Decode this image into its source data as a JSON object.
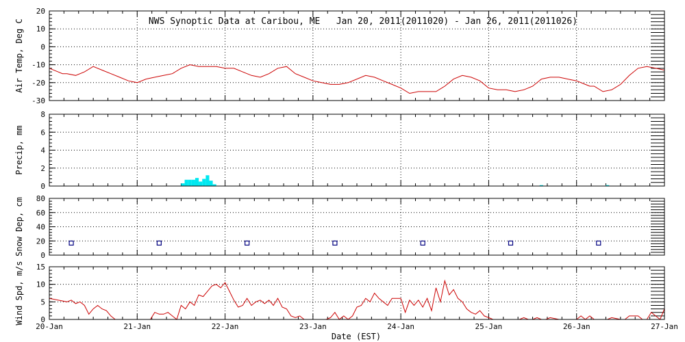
{
  "chart_data": {
    "type": "multi-panel",
    "title": "NWS Synoptic Data at Caribou, ME   Jan 20, 2011(2011020) - Jan 26, 2011(2011026)",
    "xlabel": "Date (EST)",
    "x_ticks": [
      "20-Jan",
      "21-Jan",
      "22-Jan",
      "23-Jan",
      "24-Jan",
      "25-Jan",
      "26-Jan",
      "27-Jan"
    ],
    "xlim": [
      0,
      7
    ],
    "grid": true,
    "panels": [
      {
        "type": "line",
        "ylabel": "Air Temp, Deg C",
        "ylim": [
          -30,
          20
        ],
        "yticks": [
          -30,
          -20,
          -10,
          0,
          10,
          20
        ],
        "color": "#cc0000",
        "series": [
          {
            "x": [
              0,
              0.1,
              0.15,
              0.2,
              0.3,
              0.4,
              0.5,
              0.6,
              0.7,
              0.8,
              0.9,
              1.0,
              1.1,
              1.2,
              1.3,
              1.4,
              1.5,
              1.6,
              1.7,
              1.8,
              1.9,
              2.0,
              2.1,
              2.2,
              2.3,
              2.4,
              2.5,
              2.6,
              2.7,
              2.8,
              2.9,
              3.0,
              3.1,
              3.2,
              3.3,
              3.4,
              3.5,
              3.6,
              3.7,
              3.8,
              3.9,
              4.0,
              4.1,
              4.2,
              4.3,
              4.4,
              4.5,
              4.6,
              4.7,
              4.8,
              4.9,
              5.0,
              5.1,
              5.2,
              5.3,
              5.4,
              5.5,
              5.6,
              5.7,
              5.8,
              5.9,
              6.0,
              6.1,
              6.15,
              6.2,
              6.3,
              6.4,
              6.5,
              6.6,
              6.7,
              6.8,
              6.9,
              7.0
            ],
            "y": [
              -12,
              -14,
              -15,
              -15,
              -16,
              -14,
              -11,
              -13,
              -15,
              -17,
              -19,
              -20,
              -18,
              -17,
              -16,
              -15,
              -12,
              -10,
              -11,
              -11,
              -11,
              -12,
              -12,
              -14,
              -16,
              -17,
              -15,
              -12,
              -11,
              -15,
              -17,
              -19,
              -20,
              -21,
              -21,
              -20,
              -18,
              -16,
              -17,
              -19,
              -21,
              -23,
              -26,
              -25,
              -25,
              -25,
              -22,
              -18,
              -16,
              -17,
              -19,
              -23,
              -24,
              -24,
              -25,
              -24,
              -22,
              -18,
              -17,
              -17,
              -18,
              -19,
              -21,
              -22,
              -22,
              -25,
              -24,
              -21,
              -16,
              -12,
              -11,
              -12,
              -13
            ]
          }
        ]
      },
      {
        "type": "bar",
        "ylabel": "Precip, mm",
        "ylim": [
          0,
          8
        ],
        "yticks": [
          0,
          2,
          4,
          6,
          8
        ],
        "color": "#00e8f0",
        "x": [
          1.5,
          1.54,
          1.58,
          1.62,
          1.66,
          1.7,
          1.74,
          1.78,
          1.82,
          1.86,
          5.58,
          6.33
        ],
        "values": [
          0.3,
          0.7,
          0.7,
          0.7,
          0.9,
          0.5,
          0.8,
          1.2,
          0.6,
          0.2,
          0.1,
          0.1
        ]
      },
      {
        "type": "scatter",
        "ylabel": "Snow Dep, cm",
        "ylim": [
          0,
          80
        ],
        "yticks": [
          0,
          20,
          40,
          60,
          80
        ],
        "color": "#000080",
        "x": [
          0.25,
          1.25,
          2.25,
          3.25,
          4.25,
          5.25,
          6.25
        ],
        "values": [
          17,
          17,
          17,
          17,
          17,
          17,
          17
        ]
      },
      {
        "type": "line",
        "ylabel": "Wind Spd, m/s",
        "ylim": [
          0,
          15
        ],
        "yticks": [
          0,
          5,
          10,
          15
        ],
        "color": "#cc0000",
        "series": [
          {
            "x": [
              0,
              0.1,
              0.2,
              0.25,
              0.3,
              0.35,
              0.4,
              0.45,
              0.5,
              0.55,
              0.6,
              0.65,
              0.7,
              0.75,
              0.8,
              0.85,
              0.9,
              0.95,
              1.0,
              1.1,
              1.15,
              1.2,
              1.25,
              1.3,
              1.35,
              1.4,
              1.45,
              1.5,
              1.55,
              1.6,
              1.65,
              1.7,
              1.75,
              1.8,
              1.85,
              1.9,
              1.95,
              2.0,
              2.05,
              2.1,
              2.15,
              2.2,
              2.25,
              2.3,
              2.35,
              2.4,
              2.45,
              2.5,
              2.55,
              2.6,
              2.65,
              2.7,
              2.75,
              2.8,
              2.85,
              2.9,
              2.95,
              3.0,
              3.05,
              3.1,
              3.15,
              3.2,
              3.25,
              3.3,
              3.35,
              3.4,
              3.45,
              3.5,
              3.55,
              3.6,
              3.65,
              3.7,
              3.75,
              3.8,
              3.85,
              3.9,
              3.95,
              4.0,
              4.05,
              4.1,
              4.15,
              4.2,
              4.25,
              4.3,
              4.35,
              4.4,
              4.45,
              4.5,
              4.55,
              4.6,
              4.65,
              4.7,
              4.75,
              4.8,
              4.85,
              4.9,
              4.95,
              5.0,
              5.05,
              5.1,
              5.2,
              5.3,
              5.35,
              5.4,
              5.45,
              5.5,
              5.55,
              5.6,
              5.65,
              5.7,
              5.8,
              5.85,
              5.9,
              6.0,
              6.05,
              6.1,
              6.15,
              6.2,
              6.25,
              6.3,
              6.35,
              6.4,
              6.5,
              6.55,
              6.6,
              6.7,
              6.75,
              6.8,
              6.85,
              6.9,
              6.95,
              7.0
            ],
            "y": [
              6,
              5.5,
              5,
              5.5,
              4.5,
              5,
              4,
              1.5,
              3,
              4,
              3,
              2.5,
              1,
              0,
              0,
              0,
              0,
              0,
              0,
              0,
              0,
              2,
              1.5,
              1.5,
              2,
              1,
              0,
              4,
              3,
              5,
              4,
              7,
              6.5,
              8,
              9.5,
              10,
              9,
              10.5,
              8,
              5.5,
              3.5,
              4,
              6,
              4,
              5,
              5.5,
              4.5,
              5.5,
              4,
              6,
              3.5,
              3,
              1,
              0.5,
              1,
              0,
              0,
              0,
              0,
              0,
              0,
              0.5,
              2,
              0,
              1,
              0,
              1,
              3.5,
              4,
              6,
              5,
              7.5,
              6,
              5,
              4,
              6,
              6,
              6,
              2,
              5.5,
              4,
              5.5,
              3.5,
              6,
              2.5,
              9,
              5,
              11,
              7,
              8.5,
              6,
              5,
              3,
              2,
              1.5,
              2.5,
              1,
              0.5,
              0,
              0,
              0,
              0,
              0,
              0.5,
              0,
              0,
              0.5,
              0,
              0,
              0.5,
              0,
              0,
              0,
              0,
              1,
              0,
              1,
              0,
              0,
              0,
              0,
              0.5,
              0,
              0,
              1,
              1,
              0,
              0,
              2,
              1,
              0,
              3
            ]
          }
        ]
      }
    ]
  }
}
